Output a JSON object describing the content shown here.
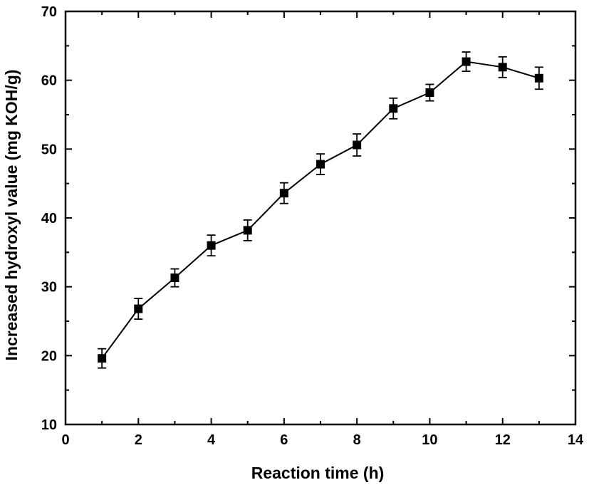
{
  "chart_data": {
    "type": "line",
    "title": "",
    "xlabel": "Reaction time (h)",
    "ylabel": "Increased hydroxyl value (mg KOH/g)",
    "xlim": [
      0,
      14
    ],
    "ylim": [
      10,
      70
    ],
    "x_ticks": [
      0,
      2,
      4,
      6,
      8,
      10,
      12,
      14
    ],
    "y_ticks": [
      10,
      20,
      30,
      40,
      50,
      60,
      70
    ],
    "grid": false,
    "marker": "square",
    "line_color": "#000000",
    "series": [
      {
        "x": [
          1,
          2,
          3,
          4,
          5,
          6,
          7,
          8,
          9,
          10,
          11,
          12,
          13
        ],
        "y": [
          19.6,
          26.8,
          31.3,
          36.0,
          38.2,
          43.6,
          47.8,
          50.6,
          55.9,
          58.2,
          62.7,
          61.9,
          60.3
        ],
        "error": [
          1.4,
          1.5,
          1.3,
          1.5,
          1.5,
          1.5,
          1.5,
          1.6,
          1.5,
          1.2,
          1.4,
          1.5,
          1.6
        ]
      }
    ]
  }
}
